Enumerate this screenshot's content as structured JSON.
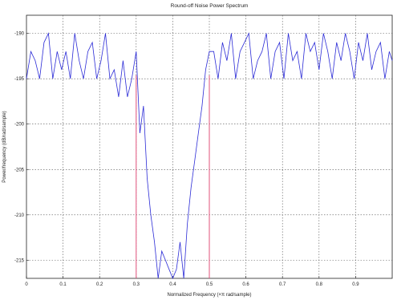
{
  "chart_data": {
    "type": "line",
    "title": "Round-off Noise Power Spectrum",
    "xlabel": "Normalized Frequency  (×π rad/sample)",
    "ylabel": "Power/frequency  (dB/rad/sample)",
    "xlim": [
      0,
      1
    ],
    "ylim": [
      -217,
      -188
    ],
    "xticks": [
      0,
      0.1,
      0.2,
      0.3,
      0.4,
      0.5,
      0.6,
      0.7,
      0.8,
      0.9
    ],
    "xtick_labels": [
      "0",
      "0.1",
      "0.2",
      "0.3",
      "0.4",
      "0.5",
      "0.6",
      "0.7",
      "0.8",
      "0.9"
    ],
    "yticks": [
      -190,
      -195,
      -200,
      -205,
      -210,
      -215
    ],
    "ytick_labels": [
      "-190",
      "-195",
      "-200",
      "-205",
      "-210",
      "-215"
    ],
    "grid": true,
    "colors": {
      "spectrum": "#2b2bd6",
      "markers": "#e0507a",
      "grid": "#555555"
    },
    "markers": [
      {
        "x": 0.3
      },
      {
        "x": 0.5
      }
    ],
    "series": [
      {
        "x": [
          0,
          0.012,
          0.024,
          0.036,
          0.048,
          0.06,
          0.072,
          0.084,
          0.096,
          0.108,
          0.12,
          0.132,
          0.144,
          0.156,
          0.168,
          0.18,
          0.192,
          0.204,
          0.216,
          0.228,
          0.24,
          0.252,
          0.264,
          0.276,
          0.288,
          0.3,
          0.31,
          0.32,
          0.33,
          0.34,
          0.35,
          0.36,
          0.37,
          0.38,
          0.39,
          0.4,
          0.41,
          0.42,
          0.43,
          0.44,
          0.45,
          0.46,
          0.47,
          0.48,
          0.49,
          0.5,
          0.512,
          0.524,
          0.536,
          0.548,
          0.56,
          0.572,
          0.584,
          0.596,
          0.608,
          0.62,
          0.632,
          0.644,
          0.656,
          0.668,
          0.68,
          0.692,
          0.704,
          0.716,
          0.728,
          0.74,
          0.752,
          0.764,
          0.776,
          0.788,
          0.8,
          0.812,
          0.824,
          0.836,
          0.848,
          0.86,
          0.872,
          0.884,
          0.896,
          0.908,
          0.92,
          0.932,
          0.944,
          0.956,
          0.968,
          0.98,
          0.992,
          1.0
        ],
        "values": [
          -195,
          -192,
          -193,
          -195,
          -191,
          -190,
          -195,
          -192,
          -194,
          -192,
          -195,
          -190,
          -193,
          -195,
          -192,
          -191,
          -195,
          -193,
          -190,
          -195,
          -194,
          -197,
          -193,
          -197,
          -195,
          -192,
          -201,
          -198,
          -206,
          -210,
          -213,
          -217,
          -214,
          -215,
          -216,
          -217,
          -216,
          -213,
          -217,
          -211,
          -207,
          -204,
          -201,
          -198,
          -194,
          -192,
          -192,
          -195,
          -191,
          -193,
          -190,
          -195,
          -192,
          -191,
          -190,
          -195,
          -193,
          -192,
          -190,
          -195,
          -192,
          -191,
          -195,
          -190,
          -193,
          -192,
          -195,
          -190,
          -192,
          -191,
          -194,
          -190,
          -192,
          -195,
          -191,
          -193,
          -190,
          -192,
          -195,
          -191,
          -193,
          -190,
          -194,
          -192,
          -191,
          -195,
          -192,
          -193
        ]
      }
    ]
  }
}
